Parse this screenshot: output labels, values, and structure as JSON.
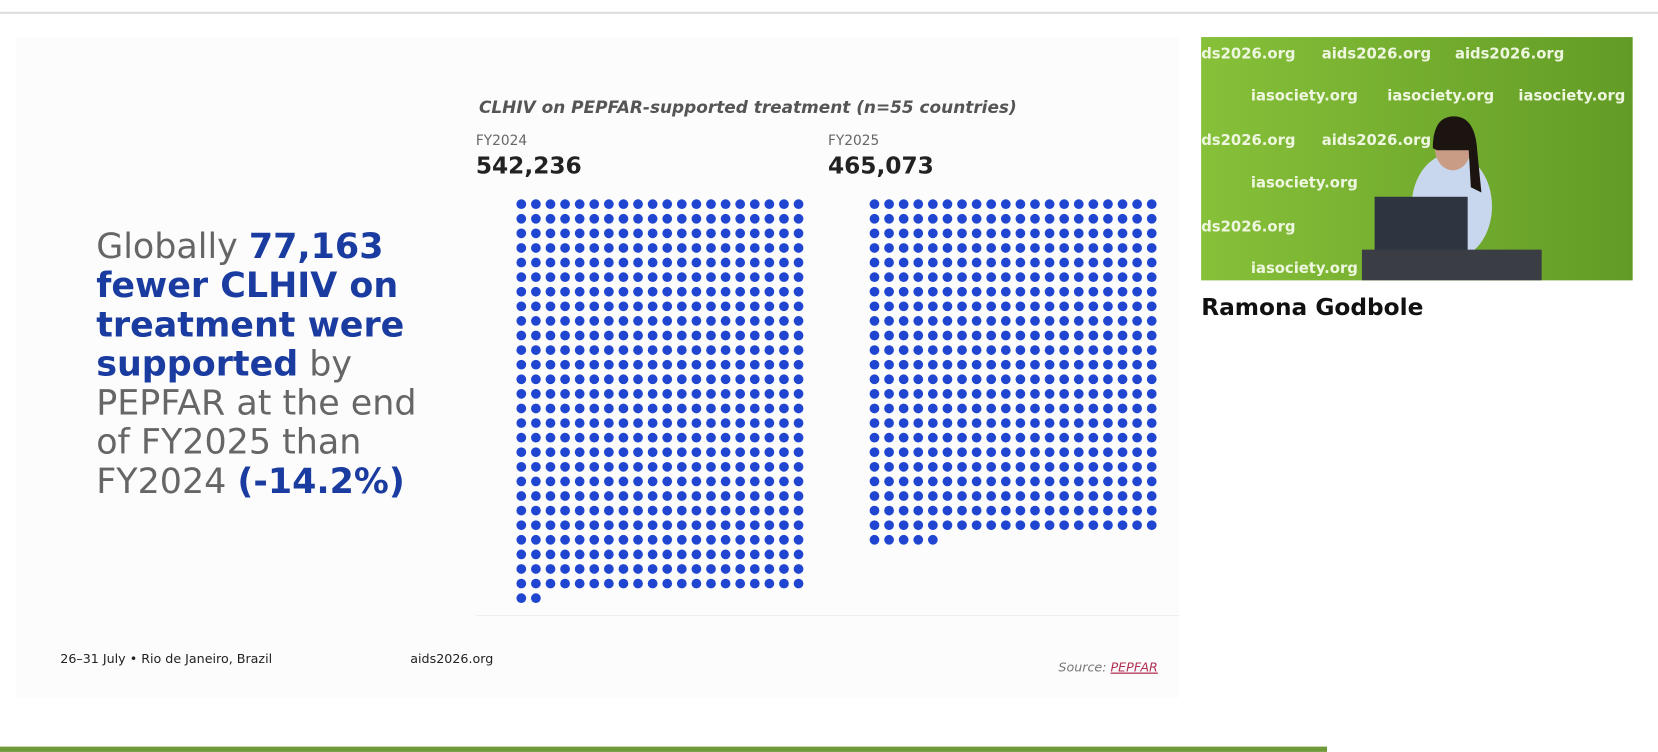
{
  "slide": {
    "chart_title": "CLHIV on PEPFAR-supported treatment (n=55 countries)",
    "panels": [
      {
        "label": "FY2024",
        "total": {
          "value": 542236,
          "label": "542,236"
        }
      },
      {
        "label": "FY2025",
        "total": {
          "value": 465073,
          "label": "465,073"
        }
      }
    ],
    "headline": [
      [
        {
          "text": "Globally ",
          "emphasis": false
        },
        {
          "text": "77,163",
          "emphasis": true
        }
      ],
      [
        {
          "text": "fewer CLHIV on",
          "emphasis": true
        }
      ],
      [
        {
          "text": "treatment were",
          "emphasis": true
        }
      ],
      [
        {
          "text": "supported",
          "emphasis": true
        },
        {
          "text": " by",
          "emphasis": false
        }
      ],
      [
        {
          "text": "PEPFAR at the end",
          "emphasis": false
        }
      ],
      [
        {
          "text": "of FY2025 than",
          "emphasis": false
        }
      ],
      [
        {
          "text": "FY2024 ",
          "emphasis": false
        },
        {
          "text": "(-14.2%)",
          "emphasis": true
        }
      ]
    ],
    "footer": {
      "dates": "26–31 July  •  Rio de Janeiro, Brazil",
      "site": "aids2026.org",
      "source_prefix": "Source: ",
      "source": "PEPFAR"
    }
  },
  "video": {
    "speaker": "Ramona Godbole",
    "watermarks": [
      "ds2026.org",
      "aids2026.org",
      "aids2026.org",
      "iasociety.org",
      "iasociety.org",
      "iasociety.org",
      "ds2026.org",
      "aids2026.org",
      "iasociety.org",
      "ds2026.org",
      "iasociety.org"
    ]
  }
}
